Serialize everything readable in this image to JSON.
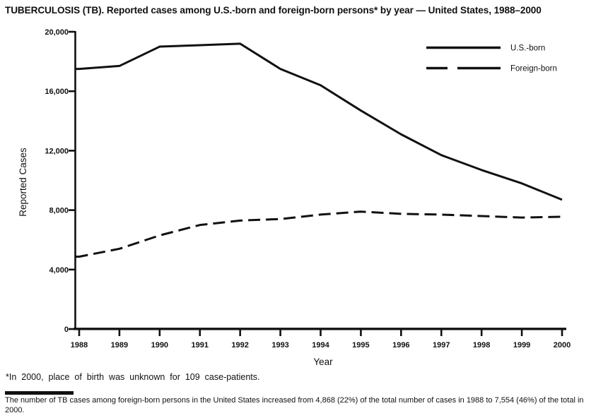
{
  "title": "TUBERCULOSIS (TB). Reported cases among U.S.-born and foreign-born persons* by year — United States, 1988–2000",
  "chart_data": {
    "type": "line",
    "x": [
      "1988",
      "1989",
      "1990",
      "1991",
      "1992",
      "1993",
      "1994",
      "1995",
      "1996",
      "1997",
      "1998",
      "1999",
      "2000"
    ],
    "series": [
      {
        "name": "U.S.-born",
        "style": "solid",
        "values": [
          17500,
          17700,
          19000,
          19100,
          19200,
          17500,
          16400,
          14700,
          13100,
          11700,
          10700,
          9800,
          8700
        ]
      },
      {
        "name": "Foreign-born",
        "style": "dashed",
        "values": [
          4868,
          5400,
          6300,
          7000,
          7300,
          7400,
          7700,
          7900,
          7750,
          7700,
          7600,
          7500,
          7554
        ]
      }
    ],
    "xlabel": "Year",
    "ylabel": "Reported Cases",
    "ylim": [
      0,
      20000
    ],
    "yticks": [
      0,
      4000,
      8000,
      12000,
      16000,
      20000
    ],
    "ytick_labels": [
      "0",
      "4,000",
      "8,000",
      "12,000",
      "16,000",
      "20,000"
    ],
    "legend_position": "top-right",
    "grid": false
  },
  "footnotes": {
    "asterisk_note": "*In 2000, place of birth was unknown for 109 case-patients.",
    "source_note": "The number of TB cases among foreign-born persons in the United States increased from 4,868 (22%) of the total number of cases in 1988 to 7,554 (46%) of the total in 2000."
  },
  "colors": {
    "line": "#111111",
    "text": "#111111",
    "background": "#ffffff"
  }
}
